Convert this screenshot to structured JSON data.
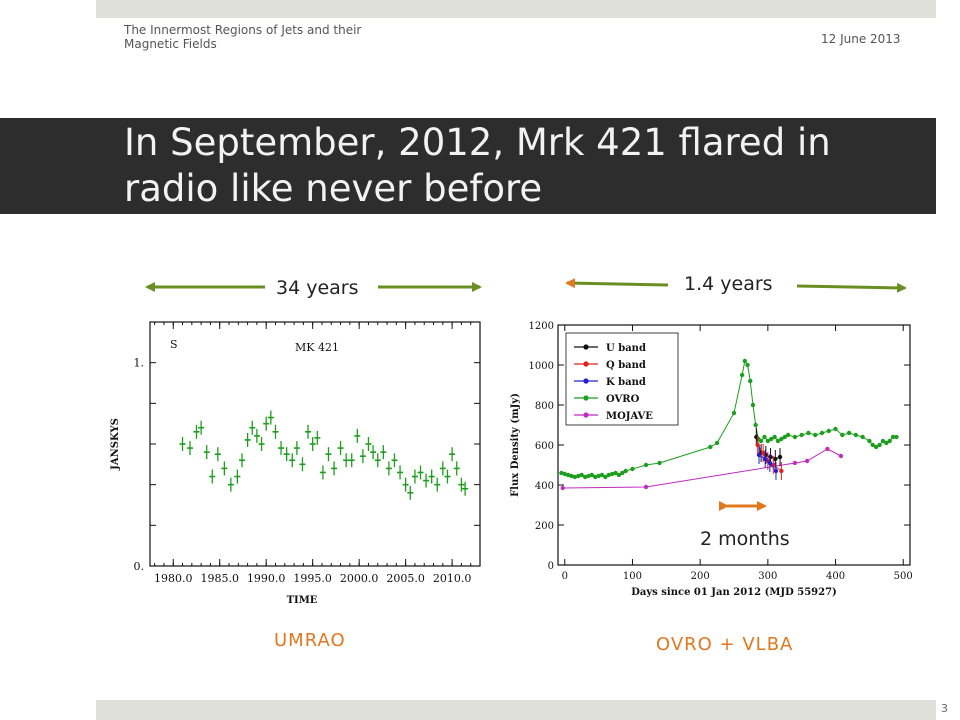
{
  "header": {
    "title": "The Innermost Regions of Jets and their Magnetic Fields",
    "date": "12 June 2013"
  },
  "slide": {
    "title": "In September, 2012, Mrk 421 flared in radio like never before",
    "page": "3"
  },
  "annotations": {
    "left_span": "34 years",
    "right_span": "1.4 years",
    "flare_span": "2 months"
  },
  "captions": {
    "left": "UMRAO",
    "right": "OVRO + VLBA"
  },
  "colors": {
    "arrow_green": "#6b8e23",
    "arrow_orange": "#e07820",
    "ovro": "#1e9e1e",
    "mojave": "#c02cc0",
    "u": "#111111",
    "q": "#e02020",
    "k": "#2020d0"
  },
  "chart_data": [
    {
      "type": "scatter",
      "title": "MK 421",
      "corner_label": "S",
      "xlabel": "TIME",
      "ylabel": "JANSKYS",
      "xlim": [
        1977.5,
        2013
      ],
      "ylim": [
        0,
        1.2
      ],
      "xticks": [
        "1980.0",
        "1985.0",
        "1990.0",
        "1995.0",
        "2000.0",
        "2005.0",
        "2010.0"
      ],
      "xtick_values": [
        1980,
        1985,
        1990,
        1995,
        2000,
        2005,
        2010
      ],
      "yticks": [
        "0.",
        "1."
      ],
      "ytick_values": [
        0,
        1
      ],
      "series": [
        {
          "x": [
            1981.0,
            1981.8,
            1982.5,
            1983.0,
            1983.6,
            1984.2,
            1984.8,
            1985.5,
            1986.2,
            1986.9,
            1987.4,
            1988.0,
            1988.5,
            1989.0,
            1989.5,
            1990.0,
            1990.5,
            1991.0,
            1991.6,
            1992.2,
            1992.8,
            1993.3,
            1993.9,
            1994.5,
            1995.0,
            1995.5,
            1996.1,
            1996.7,
            1997.3,
            1998.0,
            1998.6,
            1999.2,
            1999.8,
            2000.4,
            2001.0,
            2001.5,
            2002.0,
            2002.6,
            2003.2,
            2003.8,
            2004.4,
            2005.0,
            2005.5,
            2006.0,
            2006.6,
            2007.2,
            2007.8,
            2008.4,
            2009.0,
            2009.5,
            2010.0,
            2010.5,
            2011.0,
            2011.4
          ],
          "y": [
            0.6,
            0.58,
            0.66,
            0.68,
            0.56,
            0.44,
            0.55,
            0.48,
            0.4,
            0.44,
            0.52,
            0.62,
            0.68,
            0.64,
            0.6,
            0.7,
            0.73,
            0.66,
            0.58,
            0.55,
            0.52,
            0.58,
            0.5,
            0.66,
            0.6,
            0.63,
            0.46,
            0.55,
            0.48,
            0.58,
            0.52,
            0.52,
            0.64,
            0.54,
            0.6,
            0.56,
            0.52,
            0.56,
            0.48,
            0.52,
            0.46,
            0.4,
            0.36,
            0.44,
            0.46,
            0.42,
            0.44,
            0.4,
            0.48,
            0.44,
            0.55,
            0.48,
            0.4,
            0.38
          ]
        }
      ]
    },
    {
      "type": "line",
      "xlabel": "Days since 01 Jan 2012 (MJD 55927)",
      "ylabel": "Flux Density (mJy)",
      "xlim": [
        -10,
        510
      ],
      "ylim": [
        0,
        1200
      ],
      "xticks": [
        "0",
        "100",
        "200",
        "300",
        "400",
        "500"
      ],
      "xtick_values": [
        0,
        100,
        200,
        300,
        400,
        500
      ],
      "yticks": [
        "0",
        "200",
        "400",
        "600",
        "800",
        "1000",
        "1200"
      ],
      "ytick_values": [
        0,
        200,
        400,
        600,
        800,
        1000,
        1200
      ],
      "legend": "top-left",
      "series": [
        {
          "name": "U band",
          "color": "#111111",
          "x": [
            283,
            290,
            297,
            304,
            311,
            318
          ],
          "y": [
            640,
            560,
            550,
            540,
            530,
            540
          ]
        },
        {
          "name": "Q band",
          "color": "#e02020",
          "x": [
            285,
            293,
            300,
            308,
            320
          ],
          "y": [
            600,
            560,
            520,
            500,
            470
          ]
        },
        {
          "name": "K band",
          "color": "#2020d0",
          "x": [
            287,
            296,
            303,
            312
          ],
          "y": [
            550,
            530,
            510,
            470
          ]
        },
        {
          "name": "OVRO",
          "color": "#1e9e1e",
          "x": [
            -5,
            0,
            5,
            10,
            15,
            20,
            25,
            30,
            35,
            40,
            45,
            50,
            55,
            60,
            65,
            70,
            75,
            80,
            85,
            90,
            100,
            120,
            140,
            215,
            225,
            250,
            262,
            266,
            270,
            274,
            278,
            282,
            286,
            290,
            295,
            300,
            305,
            310,
            315,
            320,
            325,
            330,
            340,
            350,
            360,
            370,
            380,
            390,
            400,
            410,
            420,
            430,
            440,
            450,
            455,
            460,
            465,
            470,
            475,
            480,
            485,
            490
          ],
          "y": [
            460,
            455,
            450,
            445,
            440,
            445,
            450,
            440,
            445,
            450,
            440,
            445,
            450,
            440,
            450,
            455,
            460,
            450,
            460,
            470,
            480,
            500,
            510,
            590,
            610,
            760,
            950,
            1020,
            1000,
            920,
            800,
            700,
            630,
            620,
            640,
            620,
            630,
            640,
            620,
            630,
            640,
            650,
            640,
            650,
            660,
            650,
            660,
            670,
            680,
            650,
            660,
            650,
            640,
            620,
            600,
            590,
            600,
            620,
            610,
            620,
            640,
            640
          ]
        },
        {
          "name": "MOJAVE",
          "color": "#c02cc0",
          "x": [
            -3,
            120,
            340,
            358,
            388,
            408
          ],
          "y": [
            385,
            390,
            510,
            520,
            580,
            545
          ]
        }
      ]
    }
  ]
}
